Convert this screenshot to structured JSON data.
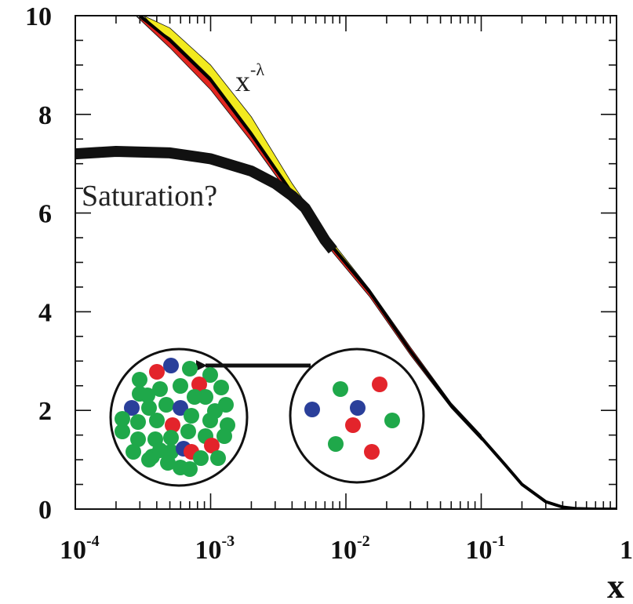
{
  "chart_data": {
    "type": "line",
    "title": "",
    "xlabel": "x",
    "ylabel": "",
    "xscale": "log",
    "xlim": [
      0.0001,
      1
    ],
    "ylim": [
      0,
      10
    ],
    "x_ticks": [
      {
        "base": "10",
        "exp": "-4"
      },
      {
        "base": "10",
        "exp": "-3"
      },
      {
        "base": "10",
        "exp": "-2"
      },
      {
        "base": "10",
        "exp": "-1"
      },
      {
        "base": "1",
        "exp": ""
      }
    ],
    "y_ticks": [
      "0",
      "2",
      "4",
      "6",
      "8",
      "10"
    ],
    "grid": false,
    "series": [
      {
        "role": "central",
        "color": "#000000",
        "x": [
          0.0003,
          0.0005,
          0.001,
          0.002,
          0.004,
          0.008,
          0.015,
          0.03,
          0.06,
          0.1,
          0.15,
          0.2,
          0.3,
          0.4,
          0.5,
          0.7,
          1.0
        ],
        "y": [
          10.0,
          9.5,
          8.7,
          7.6,
          6.4,
          5.3,
          4.4,
          3.2,
          2.1,
          1.45,
          0.9,
          0.5,
          0.15,
          0.04,
          0.01,
          0.0,
          0.0
        ]
      },
      {
        "role": "uncertainty-band-outer",
        "color": "#f2ea1f",
        "x": [
          0.00032,
          0.0005,
          0.001,
          0.002,
          0.004,
          0.008,
          0.015,
          0.03
        ],
        "y_lower": [
          10.0,
          9.4,
          8.55,
          7.45,
          6.3,
          5.25,
          4.35,
          3.2
        ],
        "y_upper": [
          10.0,
          9.75,
          9.0,
          7.95,
          6.6,
          5.4,
          4.45,
          3.25
        ]
      },
      {
        "role": "uncertainty-band-inner",
        "color": "#e2261f",
        "x": [
          0.00028,
          0.0005,
          0.001,
          0.002,
          0.004,
          0.008,
          0.015,
          0.03,
          0.06,
          0.1
        ],
        "y_lower": [
          10.0,
          9.35,
          8.5,
          7.45,
          6.3,
          5.2,
          4.3,
          3.12,
          2.05,
          1.4
        ],
        "y_upper": [
          10.0,
          9.55,
          8.75,
          7.65,
          6.45,
          5.35,
          4.45,
          3.28,
          2.15,
          1.5
        ]
      },
      {
        "role": "saturation",
        "color": "#111111",
        "x": [
          0.0001,
          0.0002,
          0.0005,
          0.001,
          0.002,
          0.003,
          0.004,
          0.005,
          0.006,
          0.007,
          0.008
        ],
        "y": [
          7.2,
          7.25,
          7.22,
          7.1,
          6.85,
          6.6,
          6.35,
          6.1,
          5.75,
          5.45,
          5.25
        ]
      }
    ],
    "annotations": {
      "power_law": {
        "base": "x",
        "exp": "-λ"
      },
      "saturation": "Saturation?"
    },
    "inset": {
      "dense_circle": {
        "dots": [
          {
            "color": "green",
            "count": 37
          },
          {
            "color": "red",
            "count": 5
          },
          {
            "color": "blue",
            "count": 4
          }
        ]
      },
      "sparse_circle": {
        "dots": [
          {
            "color": "green",
            "count": 3
          },
          {
            "color": "red",
            "count": 3
          },
          {
            "color": "blue",
            "count": 2
          }
        ]
      },
      "arrow": "from sparse to dense"
    },
    "colors": {
      "green": "#1fa84a",
      "red": "#e3242b",
      "blue": "#2a3f9a",
      "axis": "#111111"
    }
  }
}
